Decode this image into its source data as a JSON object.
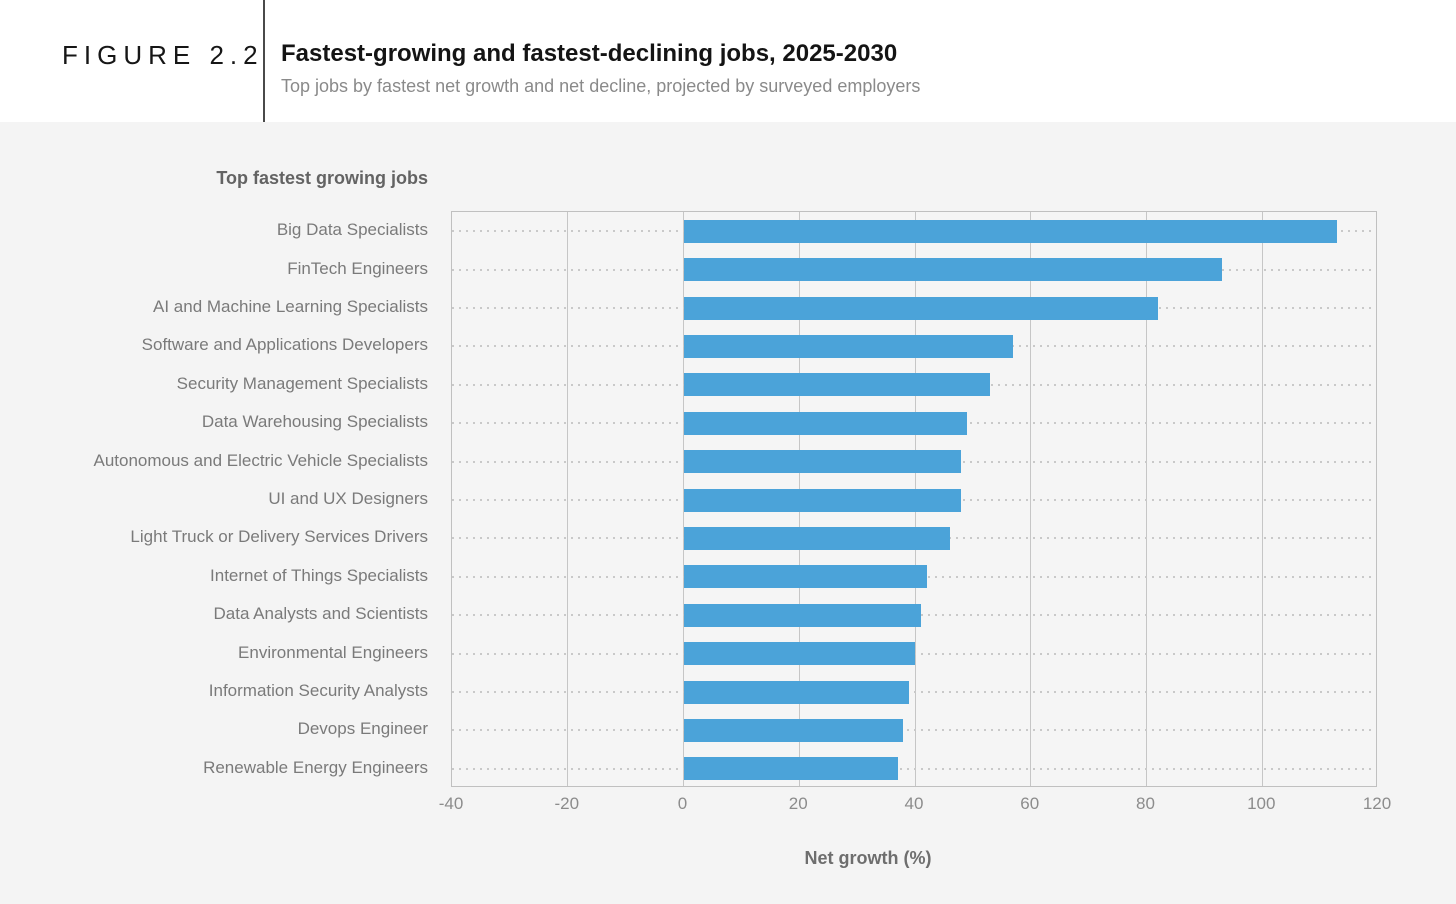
{
  "figure": {
    "label": "FIGURE 2.2"
  },
  "header": {
    "title": "Fastest-growing and fastest-declining jobs, 2025-2030",
    "subtitle": "Top jobs by fastest net growth and net decline, projected by surveyed employers"
  },
  "chart_data": {
    "type": "bar",
    "orientation": "horizontal",
    "panel_title": "Top fastest growing jobs",
    "categories": [
      "Big Data Specialists",
      "FinTech Engineers",
      "AI and Machine Learning Specialists",
      "Software and Applications Developers",
      "Security Management Specialists",
      "Data Warehousing Specialists",
      "Autonomous and Electric Vehicle Specialists",
      "UI and UX Designers",
      "Light Truck or Delivery Services Drivers",
      "Internet of Things Specialists",
      "Data Analysts and Scientists",
      "Environmental Engineers",
      "Information Security Analysts",
      "Devops Engineer",
      "Renewable Energy Engineers"
    ],
    "values": [
      113,
      93,
      82,
      57,
      53,
      49,
      48,
      48,
      46,
      42,
      41,
      40,
      39,
      38,
      37
    ],
    "xlabel": "Net growth (%)",
    "xlim": [
      -40,
      120
    ],
    "x_ticks": [
      -40,
      -20,
      0,
      20,
      40,
      60,
      80,
      100,
      120
    ],
    "bar_color": "#4ba3d9",
    "grid": true,
    "legend": false
  },
  "colors": {
    "page_background": "#f4f4f4",
    "header_background": "#ffffff",
    "plot_background": "#f5f5f5",
    "grid_line": "#c6c6c6",
    "bar": "#4ba3d9",
    "title_text": "#141414",
    "muted_text": "#7a7a7a"
  }
}
